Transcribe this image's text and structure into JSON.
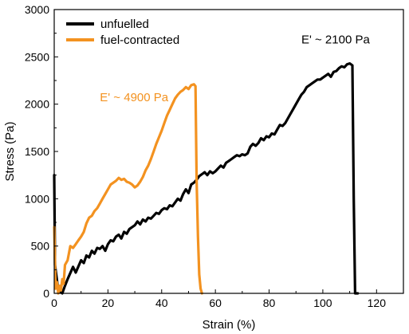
{
  "chart_data": {
    "type": "line",
    "xlabel": "Strain (%)",
    "ylabel": "Stress (Pa)",
    "xlim": [
      0,
      130
    ],
    "ylim": [
      0,
      3000
    ],
    "x_ticks": [
      "0",
      "20",
      "40",
      "60",
      "80",
      "100",
      "120"
    ],
    "y_ticks": [
      "0",
      "500",
      "1000",
      "1500",
      "2000",
      "2500",
      "3000"
    ],
    "grid": false,
    "legend_position": "top-left",
    "series": [
      {
        "name": "unfuelled",
        "color": "#000000",
        "x": [
          0,
          0.3,
          1.5,
          3,
          4,
          5,
          7,
          8,
          10,
          11,
          12,
          13,
          14,
          15,
          16,
          17,
          18,
          19,
          20,
          21,
          22,
          23,
          24,
          25,
          26,
          27,
          28,
          29,
          30,
          31,
          32,
          33,
          34,
          35,
          36,
          37,
          38,
          39,
          40,
          41,
          42,
          43,
          44,
          45,
          46,
          47,
          48,
          49,
          50,
          51,
          52,
          53,
          54,
          55,
          56,
          57,
          58,
          59,
          60,
          61,
          62,
          63,
          64,
          65,
          66,
          67,
          68,
          69,
          70,
          71,
          72,
          73,
          74,
          75,
          76,
          77,
          78,
          79,
          80,
          81,
          82,
          83,
          84,
          85,
          86,
          87,
          88,
          89,
          90,
          91,
          92,
          93,
          94,
          95,
          96,
          97,
          98,
          99,
          100,
          101,
          102,
          103,
          104,
          105,
          106,
          107,
          108,
          109,
          110,
          111,
          111.5,
          112,
          113
        ],
        "y": [
          1250,
          300,
          30,
          0,
          80,
          150,
          280,
          220,
          350,
          320,
          400,
          380,
          450,
          420,
          480,
          470,
          500,
          450,
          520,
          560,
          550,
          600,
          620,
          580,
          650,
          630,
          680,
          700,
          720,
          760,
          730,
          780,
          760,
          800,
          790,
          820,
          850,
          840,
          880,
          900,
          890,
          930,
          920,
          960,
          1000,
          980,
          1050,
          1100,
          1060,
          1150,
          1170,
          1200,
          1240,
          1260,
          1280,
          1250,
          1290,
          1270,
          1290,
          1320,
          1350,
          1330,
          1380,
          1400,
          1420,
          1440,
          1460,
          1450,
          1470,
          1460,
          1480,
          1550,
          1580,
          1560,
          1590,
          1640,
          1620,
          1660,
          1650,
          1690,
          1680,
          1730,
          1780,
          1770,
          1800,
          1850,
          1900,
          1950,
          2000,
          2050,
          2100,
          2130,
          2180,
          2200,
          2220,
          2240,
          2260,
          2260,
          2280,
          2300,
          2320,
          2290,
          2340,
          2350,
          2380,
          2400,
          2390,
          2420,
          2430,
          2410,
          1000,
          0,
          0
        ]
      },
      {
        "name": "fuel-contracted",
        "color": "#f39220",
        "x": [
          0,
          0.5,
          1,
          1.5,
          2,
          2.5,
          3,
          3.5,
          4,
          5,
          6,
          7,
          8,
          9,
          10,
          11,
          12,
          13,
          14,
          15,
          16,
          17,
          18,
          19,
          20,
          21,
          22,
          23,
          24,
          25,
          26,
          27,
          28,
          29,
          30,
          31,
          32,
          33,
          34,
          35,
          36,
          37,
          38,
          39,
          40,
          41,
          42,
          43,
          44,
          45,
          46,
          47,
          48,
          49,
          50,
          51,
          52,
          52.6,
          53,
          53.5,
          54,
          54.5,
          55
        ],
        "y": [
          700,
          50,
          120,
          0,
          80,
          30,
          150,
          100,
          300,
          350,
          500,
          480,
          520,
          560,
          600,
          650,
          740,
          800,
          820,
          870,
          900,
          950,
          1000,
          1050,
          1100,
          1150,
          1170,
          1190,
          1220,
          1200,
          1210,
          1180,
          1170,
          1150,
          1120,
          1140,
          1180,
          1230,
          1300,
          1350,
          1420,
          1500,
          1580,
          1650,
          1720,
          1800,
          1880,
          1940,
          2000,
          2060,
          2100,
          2130,
          2150,
          2180,
          2160,
          2200,
          2210,
          2190,
          1200,
          600,
          200,
          50,
          0
        ]
      }
    ],
    "annotations": [
      {
        "text": "E' ~ 2100 Pa",
        "color": "#000000",
        "x": 92,
        "y": 2640
      },
      {
        "text": "E' ~ 4900 Pa",
        "color": "#f39220",
        "x": 17,
        "y": 2030
      }
    ]
  }
}
